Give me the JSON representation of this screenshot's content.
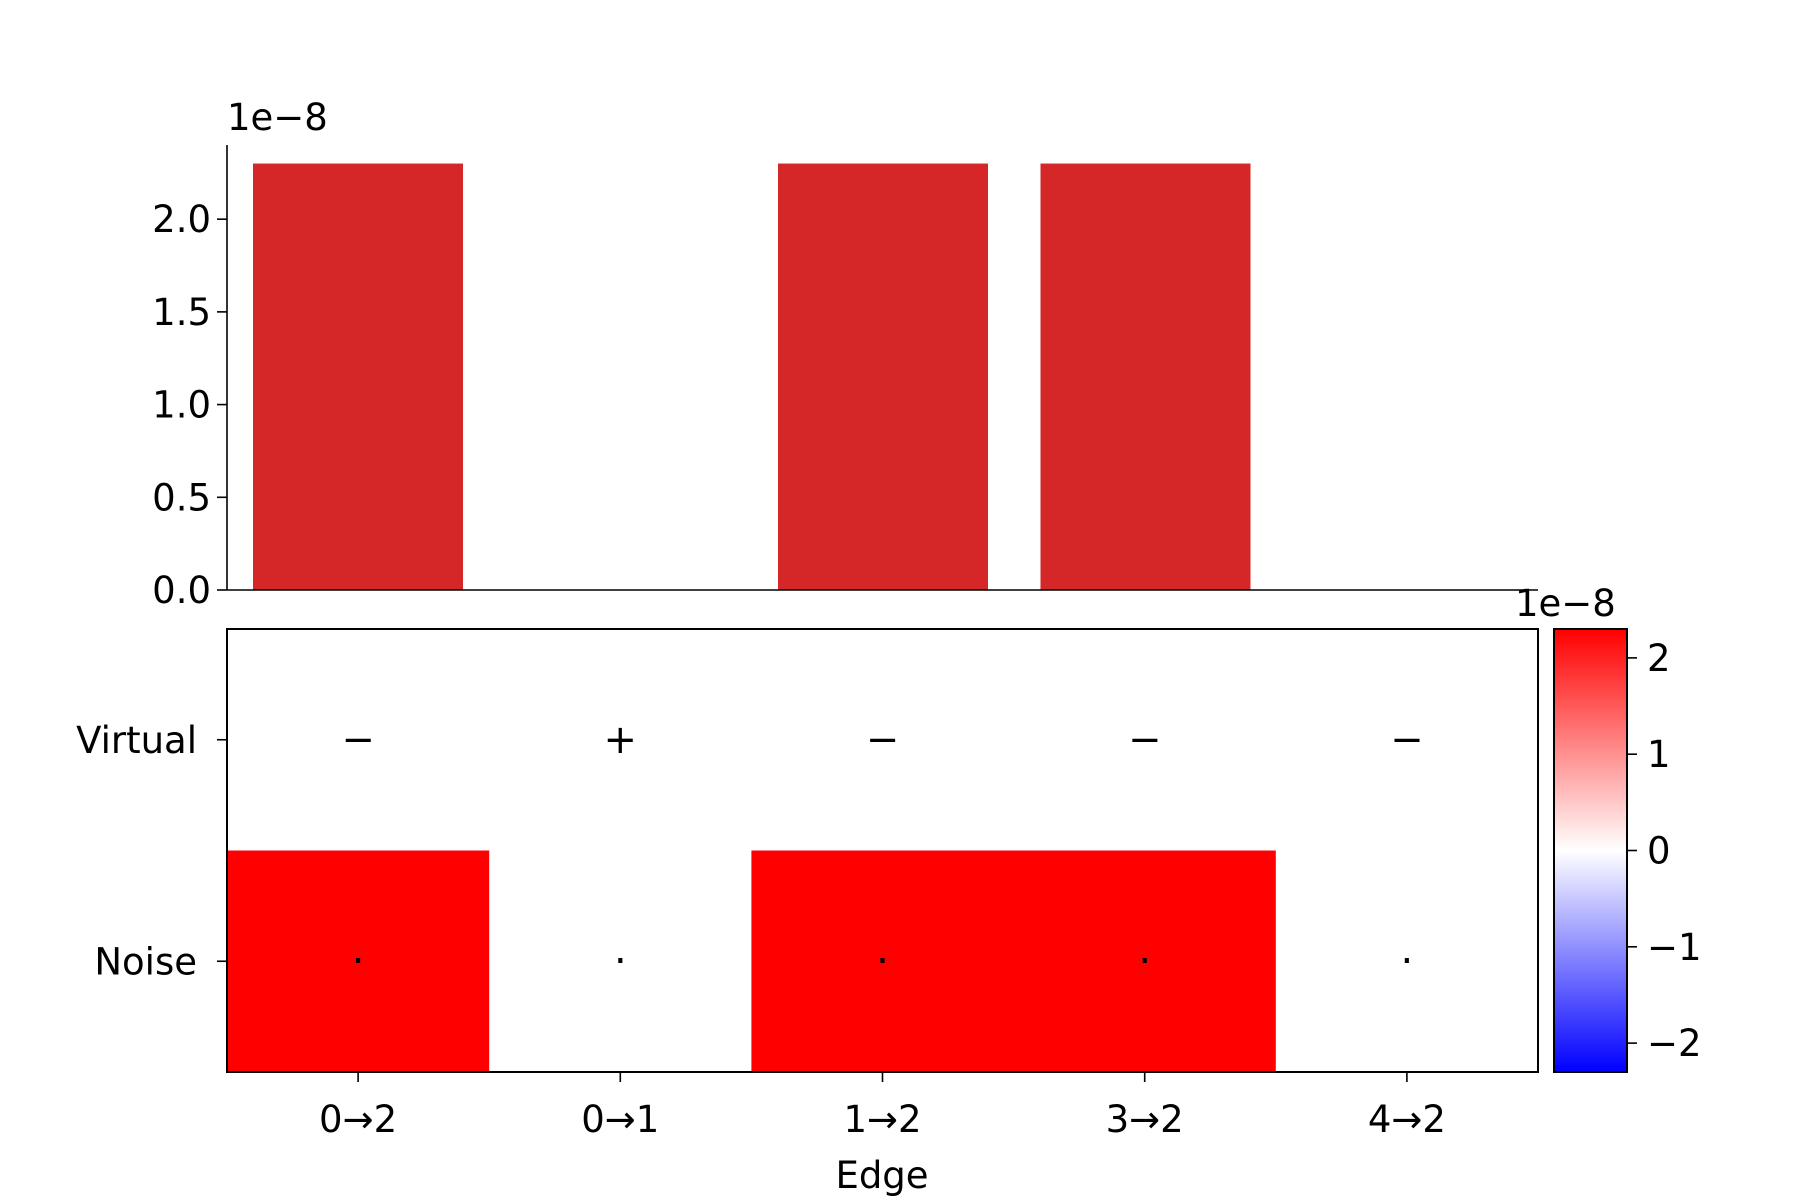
{
  "chart_data": [
    {
      "type": "bar",
      "categories": [
        "0→2",
        "0→1",
        "1→2",
        "3→2",
        "4→2"
      ],
      "values": [
        2.3e-08,
        0.0,
        2.3e-08,
        2.3e-08,
        0.0
      ],
      "ylim": [
        0,
        2.4e-08
      ],
      "yticks": [
        0.0,
        0.5,
        1.0,
        1.5,
        2.0
      ],
      "ytick_labels": [
        "0.0",
        "0.5",
        "1.0",
        "1.5",
        "2.0"
      ],
      "exponent_label": "1e−8",
      "bar_color": "#d62728",
      "grid": false
    },
    {
      "type": "heatmap",
      "rows": [
        "Virtual",
        "Noise"
      ],
      "columns": [
        "0→2",
        "0→1",
        "1→2",
        "3→2",
        "4→2"
      ],
      "values": [
        [
          0,
          0,
          0,
          0,
          0
        ],
        [
          2.3e-08,
          0,
          2.3e-08,
          2.3e-08,
          0
        ]
      ],
      "cell_annotations": [
        [
          "−",
          "+",
          "−",
          "−",
          "−"
        ],
        [
          "·",
          "·",
          "·",
          "·",
          "·"
        ]
      ],
      "xlabel": "Edge",
      "colormap": "bwr",
      "colorbar": {
        "vmin": -2.3e-08,
        "vmax": 2.3e-08,
        "ticks": [
          2,
          1,
          0,
          -1,
          -2
        ],
        "tick_labels": [
          "2",
          "1",
          "0",
          "−1",
          "−2"
        ],
        "exponent_label": "1e−8",
        "colors": {
          "min": "#0000ff",
          "mid": "#ffffff",
          "max": "#ff0000"
        }
      }
    }
  ]
}
